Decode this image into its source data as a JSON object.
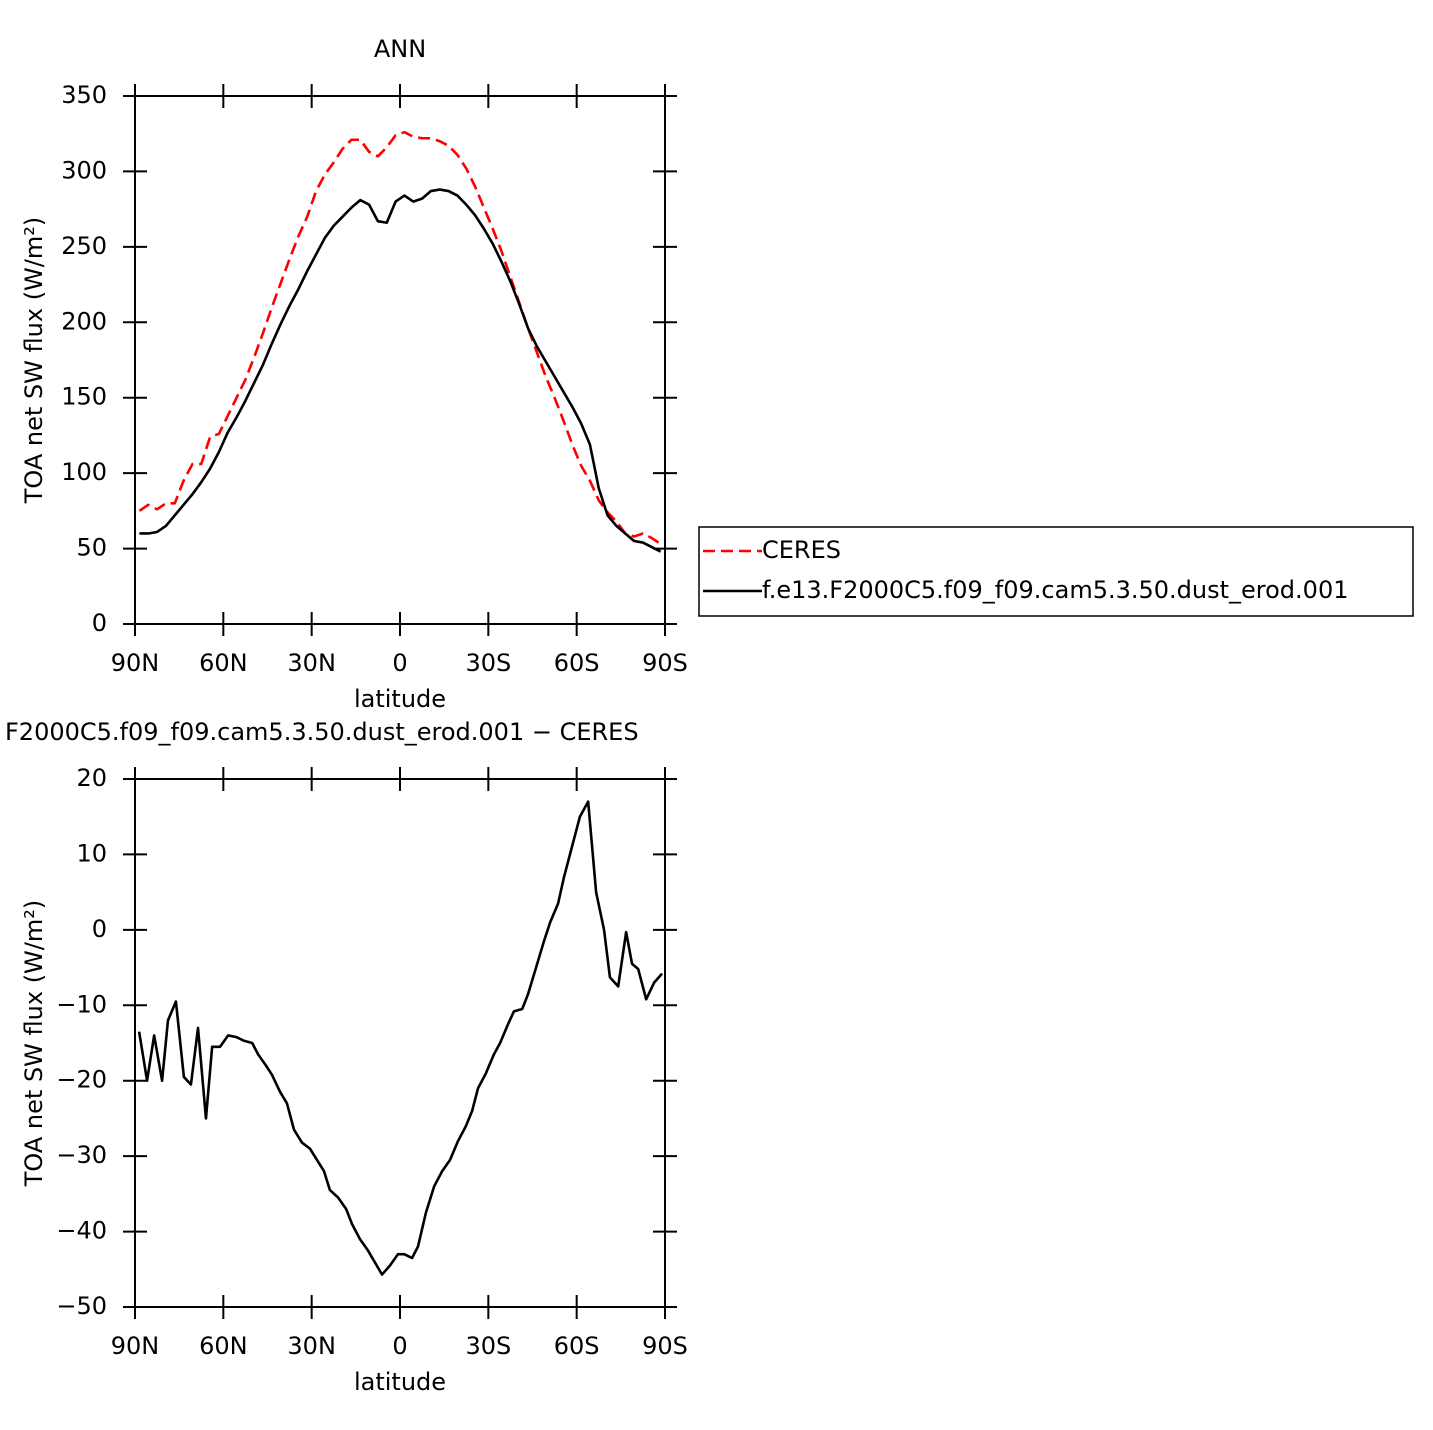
{
  "chart_data": [
    {
      "type": "line",
      "title": "ANN",
      "xlabel": "latitude",
      "ylabel": "TOA net SW flux (W/m²)",
      "x": [
        88.5,
        85.5,
        82.5,
        79.5,
        76.5,
        73.5,
        70.5,
        67.5,
        64.5,
        61.5,
        58.5,
        55.5,
        52.5,
        49.5,
        46.5,
        43.5,
        40.5,
        37.5,
        34.5,
        31.5,
        28.5,
        25.5,
        22.5,
        19.5,
        16.5,
        13.5,
        10.5,
        7.5,
        4.5,
        1.5,
        -1.5,
        -4.5,
        -7.5,
        -10.5,
        -13.5,
        -16.5,
        -19.5,
        -22.5,
        -25.5,
        -28.5,
        -31.5,
        -34.5,
        -37.5,
        -40.5,
        -43.5,
        -46.5,
        -49.5,
        -52.5,
        -55.5,
        -58.5,
        -61.5,
        -64.5,
        -67.5,
        -70.5,
        -73.5,
        -76.5,
        -79.5,
        -82.5,
        -85.5,
        -88.5
      ],
      "series": [
        {
          "name": "CERES",
          "color": "#ff0000",
          "style": "dashed",
          "values": [
            75,
            79,
            76,
            80,
            80,
            95,
            106,
            106,
            124,
            126,
            138,
            150,
            162,
            177,
            193,
            210,
            226,
            242,
            257,
            270,
            287,
            298,
            306,
            315,
            321,
            321,
            313,
            310,
            316,
            324,
            326,
            323,
            322,
            322,
            320,
            317,
            311,
            302,
            290,
            276,
            262,
            247,
            230,
            213,
            196,
            180,
            164,
            150,
            135,
            119,
            105,
            95,
            82,
            74,
            68,
            60,
            58,
            60,
            57,
            53
          ]
        },
        {
          "name": "f.e13.F2000C5.f09_f09.cam5.3.50.dust_erod.001",
          "color": "#000000",
          "style": "solid",
          "values": [
            60,
            60,
            61,
            65,
            72,
            79,
            86,
            94,
            103,
            114,
            127,
            137,
            148,
            160,
            172,
            186,
            199,
            211,
            222,
            234,
            245,
            256,
            264,
            270,
            276,
            281,
            278,
            267,
            266,
            280,
            284,
            280,
            282,
            287,
            288,
            287,
            284,
            278,
            271,
            262,
            252,
            240,
            227,
            212,
            196,
            184,
            174,
            164,
            154,
            144,
            133,
            119,
            90,
            72,
            65,
            60,
            55,
            54,
            51,
            48
          ]
        }
      ],
      "xlim": [
        90,
        -90
      ],
      "xticks": [
        {
          "value": 90,
          "label": "90N"
        },
        {
          "value": 60,
          "label": "60N"
        },
        {
          "value": 30,
          "label": "30N"
        },
        0,
        {
          "value": -30,
          "label": "30S"
        },
        {
          "value": -60,
          "label": "60S"
        },
        {
          "value": -90,
          "label": "90S"
        }
      ],
      "ylim": [
        0,
        350
      ],
      "yticks": [
        0,
        50,
        100,
        150,
        200,
        250,
        300,
        350
      ]
    },
    {
      "type": "line",
      "title": "F2000C5.f09_f09.cam5.3.50.dust_erod.001 − CERES",
      "xlabel": "latitude",
      "ylabel": "TOA net SW flux (W/m²)",
      "x": [
        88.6,
        85.9,
        83.5,
        80.8,
        78.8,
        76.1,
        73.4,
        71.0,
        68.6,
        65.9,
        63.8,
        61.1,
        58.4,
        55.7,
        53.0,
        50.2,
        48.2,
        45.5,
        43.5,
        40.7,
        38.4,
        36.0,
        33.3,
        30.6,
        28.2,
        25.8,
        23.8,
        21.0,
        18.3,
        16.3,
        13.6,
        10.9,
        6.1,
        3.4,
        0.7,
        -1.4,
        -4.1,
        -6.1,
        -8.8,
        -11.6,
        -14.3,
        -17.0,
        -19.7,
        -22.4,
        -24.5,
        -26.5,
        -29.2,
        -31.9,
        -34.0,
        -36.7,
        -38.7,
        -41.5,
        -43.5,
        -46.2,
        -48.9,
        -51.0,
        -53.7,
        -55.7,
        -58.4,
        -61.1,
        -63.9,
        -66.6,
        -69.3,
        -71.3,
        -74.1,
        -76.8,
        -78.8,
        -80.9,
        -83.6,
        -86.3,
        -89.0
      ],
      "series": [
        {
          "color": "#000000",
          "style": "solid",
          "values": [
            -13.5,
            -20,
            -14,
            -20,
            -12,
            -9.5,
            -19.5,
            -20.5,
            -13,
            -25,
            -15.5,
            -15.5,
            -14,
            -14.2,
            -14.7,
            -15,
            -16.5,
            -18,
            -19.2,
            -21.5,
            -23,
            -26.5,
            -28.2,
            -29,
            -30.5,
            -32,
            -34.5,
            -35.5,
            -37,
            -39,
            -41,
            -42.5,
            -45.7,
            -44.5,
            -43,
            -43,
            -43.5,
            -42,
            -37.5,
            -34,
            -32,
            -30.5,
            -28,
            -26,
            -24,
            -21,
            -19,
            -16.5,
            -15,
            -12.5,
            -10.8,
            -10.5,
            -8.5,
            -5,
            -1.5,
            1,
            3.5,
            7,
            11,
            15,
            17,
            5,
            0,
            -6.3,
            -7.5,
            -0.3,
            -4.5,
            -5.2,
            -9.2,
            -7,
            -5.8
          ]
        }
      ],
      "xlim": [
        90,
        -90
      ],
      "xticks": [
        {
          "value": 90,
          "label": "90N"
        },
        {
          "value": 60,
          "label": "60N"
        },
        {
          "value": 30,
          "label": "30N"
        },
        0,
        {
          "value": -30,
          "label": "30S"
        },
        {
          "value": -60,
          "label": "60S"
        },
        {
          "value": -90,
          "label": "90S"
        }
      ],
      "ylim": [
        -50,
        20
      ],
      "yticks": [
        {
          "value": -50,
          "label": "−50"
        },
        {
          "value": -40,
          "label": "−40"
        },
        {
          "value": -30,
          "label": "−30"
        },
        {
          "value": -20,
          "label": "−20"
        },
        {
          "value": -10,
          "label": "−10"
        },
        0,
        10,
        20
      ]
    }
  ]
}
